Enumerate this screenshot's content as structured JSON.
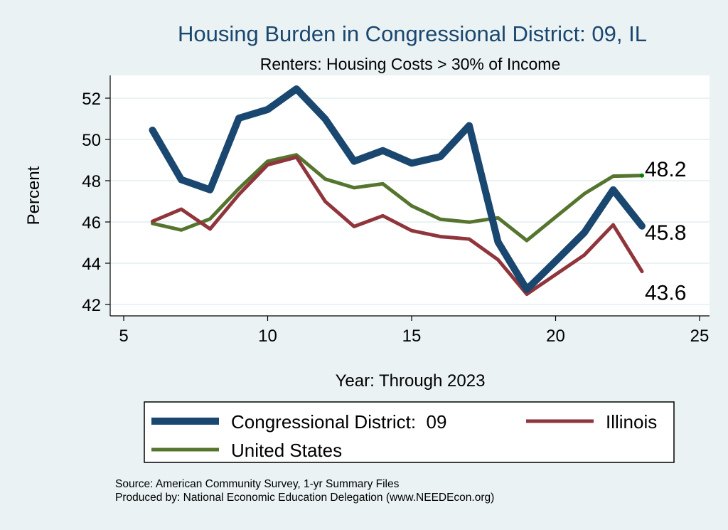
{
  "chart_data": {
    "type": "line",
    "title": "Housing Burden in Congressional District:  09, IL",
    "subtitle": "Renters: Housing Costs > 30% of Income",
    "xlabel": "Year: Through 2023",
    "ylabel": "Percent",
    "xlim": [
      5,
      25
    ],
    "ylim": [
      42,
      52
    ],
    "xticks": [
      5,
      10,
      15,
      20,
      25
    ],
    "yticks": [
      42,
      44,
      46,
      48,
      50,
      52
    ],
    "grid": true,
    "x": [
      6,
      7,
      8,
      9,
      10,
      11,
      12,
      13,
      14,
      15,
      16,
      17,
      18,
      19,
      20,
      21,
      22,
      23
    ],
    "series": [
      {
        "name": "Congressional District:  09",
        "color": "#1a476f",
        "width": 10,
        "values": [
          50.45,
          48.05,
          47.56,
          51.03,
          51.45,
          52.45,
          50.99,
          48.94,
          49.46,
          48.85,
          49.17,
          50.67,
          45.03,
          42.73,
          44.1,
          45.49,
          47.56,
          45.8
        ],
        "end_label": "45.8"
      },
      {
        "name": "Illinois",
        "color": "#90353b",
        "width": 5,
        "values": [
          46.03,
          46.62,
          45.66,
          47.33,
          48.77,
          49.14,
          46.99,
          45.78,
          46.3,
          45.58,
          45.29,
          45.17,
          44.17,
          42.5,
          43.45,
          44.4,
          45.86,
          43.6
        ],
        "end_label": "43.6"
      },
      {
        "name": "United States",
        "color": "#55752f",
        "width": 5,
        "values": [
          45.93,
          45.61,
          46.15,
          47.62,
          48.94,
          49.25,
          48.08,
          47.66,
          47.85,
          46.78,
          46.13,
          45.99,
          46.2,
          45.1,
          46.24,
          47.37,
          48.22,
          48.25
        ],
        "end_label": "48.2"
      }
    ],
    "legend": {
      "placement": "bottom",
      "columns": 2
    },
    "notes": [
      "Source: American Community Survey, 1-yr Summary Files",
      "Produced by: National Economic Education Delegation (www.NEEDEcon.org)"
    ]
  }
}
